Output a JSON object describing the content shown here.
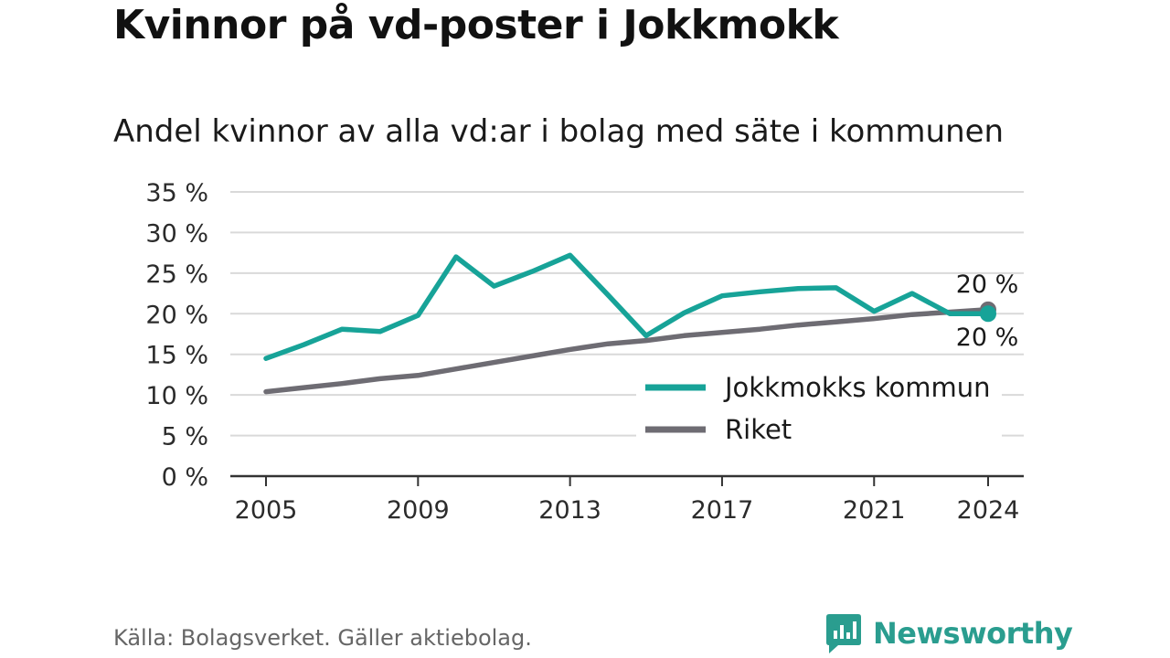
{
  "title": "Kvinnor på vd-poster i Jokkmokk",
  "subtitle": "Andel kvinnor av alla vd:ar i bolag med säte i kommunen",
  "source": "Källa: Bolagsverket. Gäller aktiebolag.",
  "brand": "Newsworthy",
  "colors": {
    "jokkmokk": "#17a398",
    "riket": "#6e6c73",
    "grid": "#d9d9d9",
    "axis": "#333333",
    "brand": "#2a9d8f"
  },
  "chart_data": {
    "type": "line",
    "x": [
      2005,
      2006,
      2007,
      2008,
      2009,
      2010,
      2011,
      2012,
      2013,
      2014,
      2015,
      2016,
      2017,
      2018,
      2019,
      2020,
      2021,
      2022,
      2023,
      2024
    ],
    "x_ticks": [
      2005,
      2009,
      2013,
      2017,
      2021,
      2024
    ],
    "x_tick_labels": [
      "2005",
      "2009",
      "2013",
      "2017",
      "2021",
      "2024"
    ],
    "y_ticks": [
      0,
      5,
      10,
      15,
      20,
      25,
      30,
      35
    ],
    "y_tick_labels": [
      "0 %",
      "5 %",
      "10 %",
      "15 %",
      "20 %",
      "25 %",
      "30 %",
      "35 %"
    ],
    "ylim": [
      0,
      35
    ],
    "xlim": [
      2005,
      2024
    ],
    "grid": true,
    "legend_position": "bottom-right",
    "series": [
      {
        "name": "Jokkmokks kommun",
        "color": "#17a398",
        "values": [
          14.5,
          16.2,
          18.1,
          17.8,
          19.8,
          27.0,
          23.4,
          25.2,
          27.2,
          22.3,
          17.3,
          20.1,
          22.2,
          22.7,
          23.1,
          23.2,
          20.3,
          22.5,
          20.0,
          20.0
        ],
        "end_label": "20 %"
      },
      {
        "name": "Riket",
        "color": "#6e6c73",
        "values": [
          10.4,
          10.9,
          11.4,
          12.0,
          12.4,
          13.2,
          14.0,
          14.8,
          15.6,
          16.3,
          16.7,
          17.3,
          17.7,
          18.1,
          18.6,
          19.0,
          19.4,
          19.9,
          20.2,
          20.5
        ],
        "end_label": "20 %"
      }
    ]
  }
}
